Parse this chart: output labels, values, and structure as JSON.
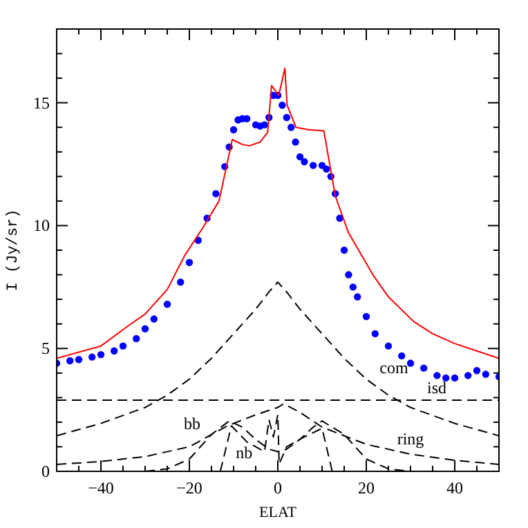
{
  "chart_data": {
    "type": "line",
    "xlabel": "ELAT",
    "ylabel": "I (Jy/sr)",
    "xlim": [
      -50,
      50
    ],
    "ylim": [
      0,
      18
    ],
    "xticks": [
      {
        "value": -50,
        "label": null
      },
      {
        "value": -45,
        "label": null
      },
      -40,
      {
        "value": -35,
        "label": null
      },
      {
        "value": -30,
        "label": null
      },
      {
        "value": -25,
        "label": null
      },
      -20,
      {
        "value": -15,
        "label": null
      },
      {
        "value": -10,
        "label": null
      },
      {
        "value": -5,
        "label": null
      },
      0,
      {
        "value": 5,
        "label": null
      },
      {
        "value": 10,
        "label": null
      },
      {
        "value": 15,
        "label": null
      },
      20,
      {
        "value": 25,
        "label": null
      },
      {
        "value": 30,
        "label": null
      },
      {
        "value": 35,
        "label": null
      },
      40,
      {
        "value": 45,
        "label": null
      }
    ],
    "yticks": [
      0,
      {
        "value": 1,
        "label": null
      },
      {
        "value": 2,
        "label": null
      },
      {
        "value": 3,
        "label": null
      },
      {
        "value": 4,
        "label": null
      },
      5,
      {
        "value": 6,
        "label": null
      },
      {
        "value": 7,
        "label": null
      },
      {
        "value": 8,
        "label": null
      },
      {
        "value": 9,
        "label": null
      },
      10,
      {
        "value": 11,
        "label": null
      },
      {
        "value": 12,
        "label": null
      },
      {
        "value": 13,
        "label": null
      },
      {
        "value": 14,
        "label": null
      },
      15,
      {
        "value": 16,
        "label": null
      },
      {
        "value": 17,
        "label": null
      }
    ],
    "grid": false,
    "series": [
      {
        "type": "scatter",
        "marker": "circle",
        "color": "#0000ff",
        "x": [
          -50,
          -47,
          -45,
          -42,
          -40,
          -37,
          -35,
          -32,
          -30,
          -28,
          -25,
          -22,
          -20,
          -18,
          -16,
          -14,
          -12,
          -11,
          -10,
          -9,
          -8,
          -7,
          -5,
          -4,
          -3,
          -2,
          -1,
          0,
          1,
          2,
          3,
          4,
          5,
          6,
          8,
          10,
          11,
          12,
          13,
          14,
          15,
          16,
          17,
          18,
          20,
          22,
          25,
          28,
          30,
          33,
          36,
          38,
          40,
          43,
          45,
          47,
          50
        ],
        "values": [
          4.4,
          4.5,
          4.55,
          4.65,
          4.75,
          4.9,
          5.1,
          5.4,
          5.8,
          6.2,
          6.8,
          7.7,
          8.5,
          9.4,
          10.3,
          11.3,
          12.4,
          13.2,
          13.9,
          14.3,
          14.35,
          14.35,
          14.1,
          14.05,
          14.1,
          14.4,
          15.3,
          15.3,
          14.9,
          14.4,
          14.0,
          13.4,
          12.8,
          12.6,
          12.45,
          12.45,
          12.3,
          12.0,
          11.3,
          10.3,
          9.0,
          8.0,
          7.5,
          7.1,
          6.3,
          5.6,
          5.1,
          4.7,
          4.4,
          4.2,
          3.9,
          3.8,
          3.8,
          3.9,
          4.1,
          3.95,
          3.85
        ]
      },
      {
        "line_style": "solid",
        "color": "#ff0000",
        "x": [
          -50,
          -40,
          -34,
          -30,
          -25,
          -21,
          -17,
          -13.3,
          -10.3,
          -8,
          -6.4,
          -4,
          -2.3,
          -1.4,
          0.2,
          1.6,
          2.1,
          4.1,
          7,
          10.4,
          13,
          16,
          21.5,
          25,
          30.7,
          35,
          40,
          45,
          50
        ],
        "values": [
          4.6,
          5.1,
          5.9,
          6.4,
          7.4,
          8.8,
          9.9,
          11.0,
          13.5,
          13.3,
          13.25,
          13.4,
          13.8,
          15.7,
          15.3,
          16.4,
          14.9,
          14.0,
          13.9,
          13.86,
          11.2,
          9.7,
          8.0,
          7.1,
          6.1,
          5.6,
          5.2,
          4.9,
          4.6
        ]
      },
      {
        "name": "com",
        "line_style": "dashed",
        "color": "#000000",
        "x": [
          -50,
          -40,
          -30,
          -25,
          -20,
          -15,
          -10,
          -5,
          -2,
          0,
          2,
          5,
          10,
          15,
          20,
          25,
          30,
          40,
          50
        ],
        "values": [
          1.45,
          1.95,
          2.6,
          3.1,
          3.75,
          4.6,
          5.6,
          6.6,
          7.3,
          7.7,
          7.3,
          6.6,
          5.6,
          4.6,
          3.75,
          3.1,
          2.6,
          1.95,
          1.45
        ]
      },
      {
        "name": "isd",
        "line_style": "dashed",
        "color": "#000000",
        "x": [
          -50,
          50
        ],
        "values": [
          2.9,
          2.9
        ]
      },
      {
        "name": "ring",
        "line_style": "dashed",
        "color": "#000000",
        "x": [
          -50,
          -40,
          -30,
          -20,
          -11.4,
          -5,
          0,
          1.3,
          5,
          10,
          20,
          30,
          40,
          50
        ],
        "values": [
          0.28,
          0.4,
          0.6,
          1.0,
          1.85,
          2.3,
          2.6,
          2.75,
          2.4,
          1.8,
          1.1,
          0.7,
          0.45,
          0.28
        ]
      },
      {
        "name": "bb",
        "line_style": "dashed",
        "color": "#000000",
        "x": [
          -30,
          -25,
          -20,
          -15,
          -11,
          -8,
          -5,
          -2,
          0,
          2,
          5,
          8,
          10,
          15,
          20,
          25,
          30
        ],
        "values": [
          0,
          0.1,
          0.5,
          1.5,
          2.05,
          1.8,
          1.3,
          0.9,
          0.8,
          0.9,
          1.3,
          1.8,
          2.05,
          1.5,
          0.5,
          0.1,
          0
        ]
      },
      {
        "name": "nb",
        "line_style": "dashed",
        "color": "#000000",
        "x": [
          -13,
          -10.5,
          -7,
          -3,
          -2,
          -1,
          0,
          0.3,
          2,
          6,
          10,
          12.3
        ],
        "values": [
          0,
          1.85,
          1.2,
          0.8,
          2.1,
          1.4,
          2.3,
          0.3,
          1.0,
          1.4,
          1.75,
          0
        ]
      }
    ]
  }
}
